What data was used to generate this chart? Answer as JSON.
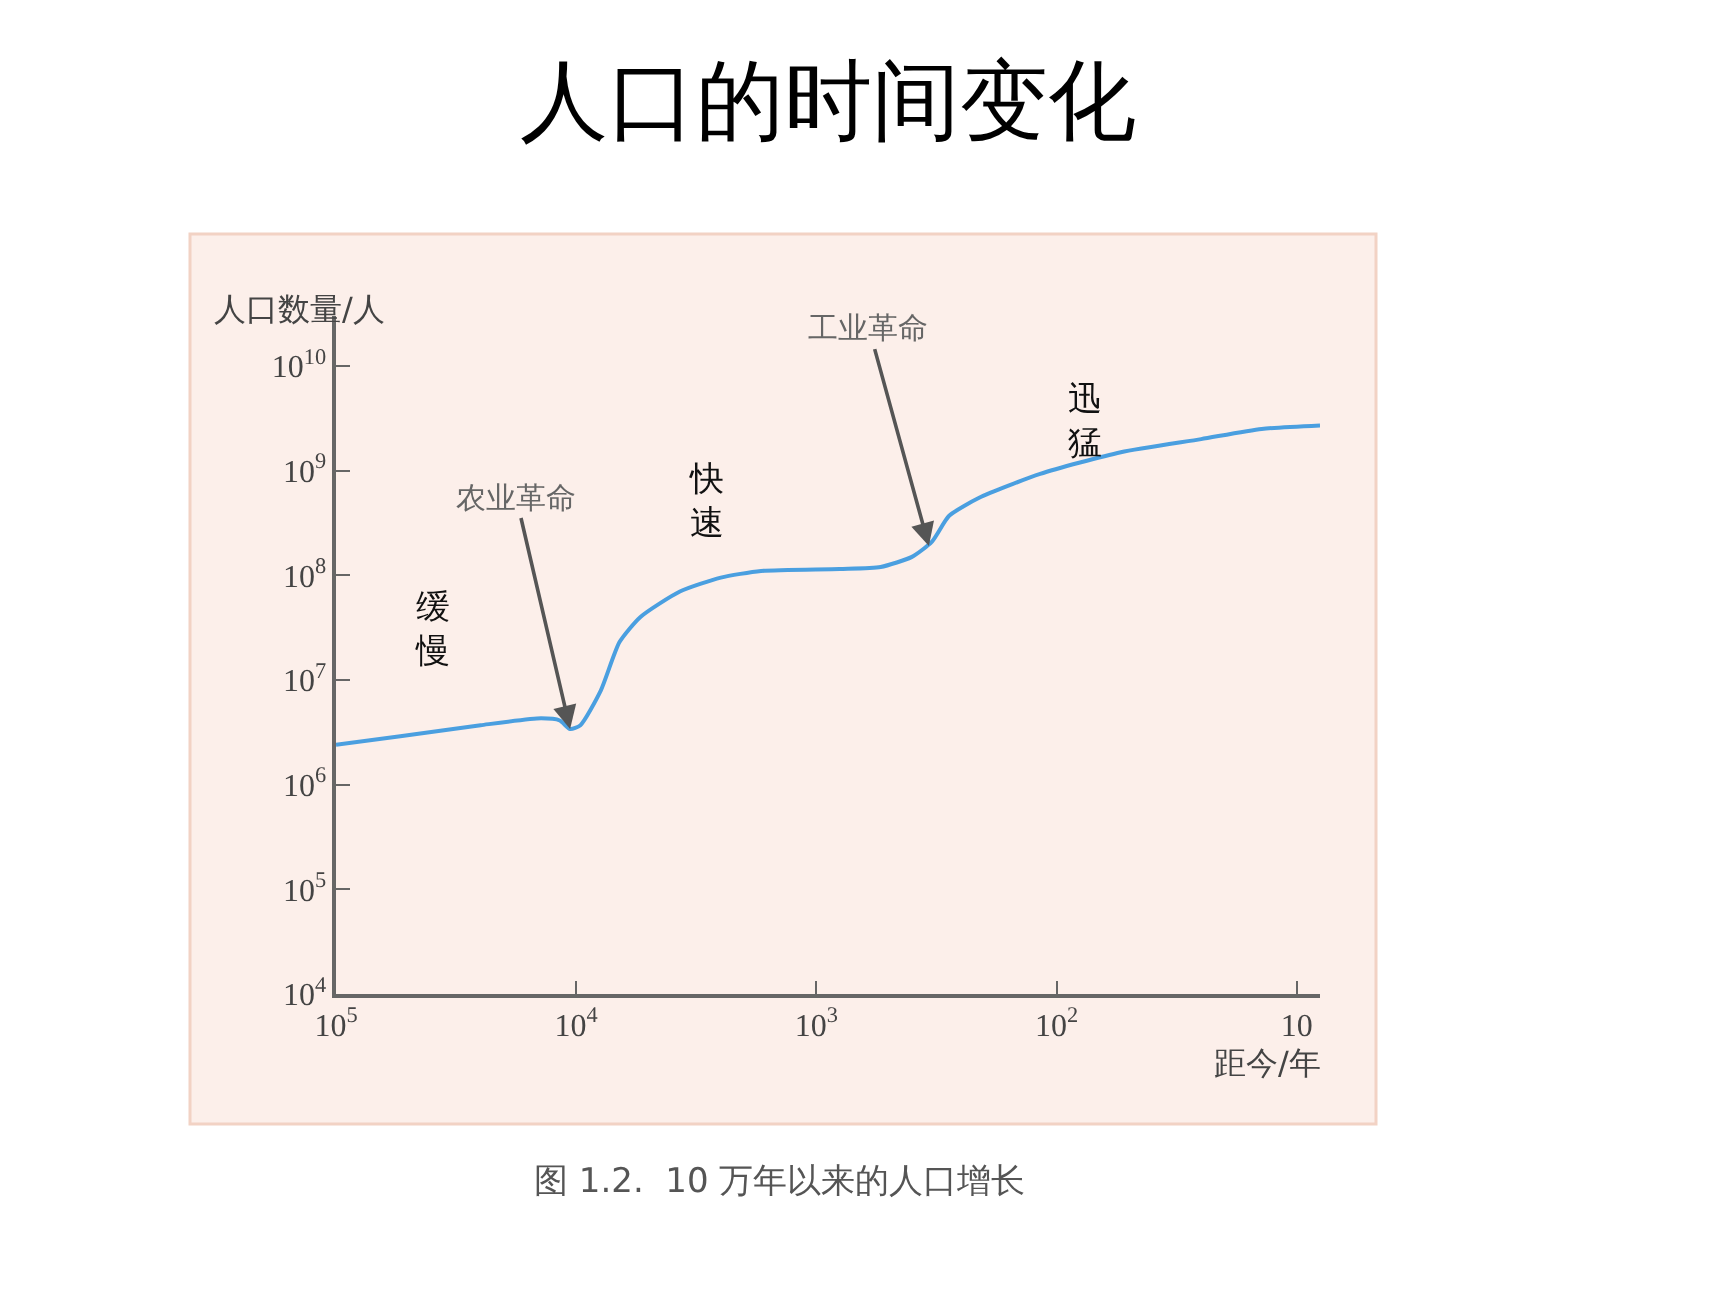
{
  "chart_data": {
    "type": "line",
    "title": "人口的时间变化",
    "xlabel": "距今/年",
    "ylabel": "人口数量/人",
    "log": "xy",
    "grid": false,
    "marker": "none",
    "line_style": "solid",
    "x": [
      100000,
      54000,
      25000,
      14000,
      11700,
      10600,
      9600,
      7900,
      6600,
      5400,
      3700,
      2500,
      1700,
      800,
      540,
      400,
      330,
      280,
      210,
      117,
      54,
      25,
      14,
      8
    ],
    "series": [
      {
        "color": "#4a9fe0",
        "values": [
          2400000,
          2900000,
          3700000,
          4300000,
          4100000,
          3400000,
          3700000,
          7900000,
          23000000,
          40000000,
          70000000,
          95000000,
          110000000,
          115000000,
          120000000,
          150000000,
          210000000,
          370000000,
          550000000,
          930000000,
          1500000000,
          2000000000,
          2500000000,
          2700000000
        ]
      }
    ],
    "xlim": [
      100000,
      8
    ],
    "ylim": [
      10000,
      30000000000
    ],
    "xticks": [
      {
        "value": 100000,
        "label": "10$^{5}$"
      },
      {
        "value": 10000,
        "label": "10$^{4}$"
      },
      {
        "value": 1000,
        "label": "10$^{3}$"
      },
      {
        "value": 100,
        "label": "10$^{2}$"
      },
      10
    ],
    "yticks": [
      {
        "value": 10000,
        "label": "10$^{4}$"
      },
      {
        "value": 100000,
        "label": "10$^{5}$"
      },
      {
        "value": 1000000,
        "label": "10$^{6}$"
      },
      {
        "value": 10000000,
        "label": "10$^{7}$"
      },
      {
        "value": 100000000,
        "label": "10$^{8}$"
      },
      {
        "value": 1000000000,
        "label": "10$^{9}$"
      },
      {
        "value": 10000000000,
        "label": "10$^{10}$"
      }
    ],
    "annotations": [
      {
        "text": "农业革命",
        "x": 10600,
        "y": 3400000
      },
      {
        "text": "工业革命",
        "x": 340,
        "y": 190000000
      },
      "缓慢",
      "快速",
      "迅猛",
      "图 1.2.  10 万年以来的人口增长"
    ]
  }
}
